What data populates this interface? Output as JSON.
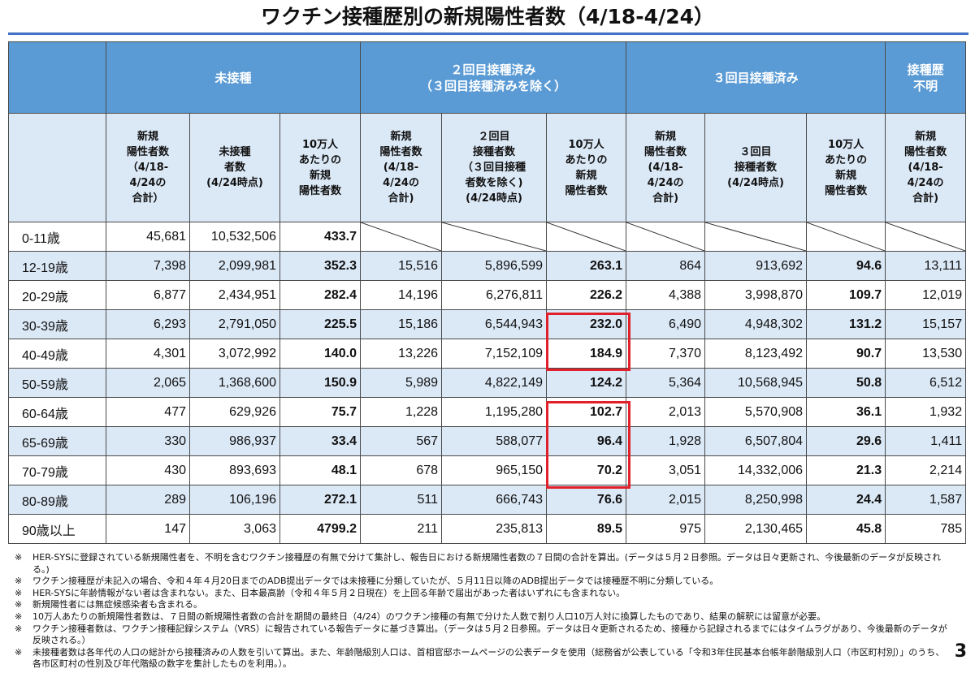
{
  "title": "ワクチン接種歴別の新規陽性者数（4/18-4/24）",
  "groups": {
    "unvaccinated": "未接種",
    "dose2": "２回目接種済み\n（３回目接種済みを除く）",
    "dose3": "３回目接種済み",
    "unknown": "接種歴\n不明"
  },
  "columns": [
    "新規\n陽性者数\n（4/18-\n4/24の\n合計）",
    "未接種\n者数\n(4/24時点)",
    "10万人\nあたりの\n新規\n陽性者数",
    "新規\n陽性者数\n(4/18-\n4/24の\n合計)",
    "２回目\n接種者数\n（３回目接種\n者数を除く)\n(4/24時点)",
    "10万人\nあたりの\n新規\n陽性者数",
    "新規\n陽性者数\n(4/18-\n4/24の\n合計)",
    "３回目\n接種者数\n(4/24時点)",
    "10万人\nあたりの\n新規\n陽性者数",
    "新規\n陽性者数\n(4/18-\n4/24の\n合計)"
  ],
  "rows": [
    {
      "age": "0-11歳",
      "v": [
        "45,681",
        "10,532,506",
        "433.7",
        "",
        "",
        "",
        "",
        "",
        "",
        ""
      ]
    },
    {
      "age": "12-19歳",
      "v": [
        "7,398",
        "2,099,981",
        "352.3",
        "15,516",
        "5,896,599",
        "263.1",
        "864",
        "913,692",
        "94.6",
        "13,111"
      ]
    },
    {
      "age": "20-29歳",
      "v": [
        "6,877",
        "2,434,951",
        "282.4",
        "14,196",
        "6,276,811",
        "226.2",
        "4,388",
        "3,998,870",
        "109.7",
        "12,019"
      ]
    },
    {
      "age": "30-39歳",
      "v": [
        "6,293",
        "2,791,050",
        "225.5",
        "15,186",
        "6,544,943",
        "232.0",
        "6,490",
        "4,948,302",
        "131.2",
        "15,157"
      ]
    },
    {
      "age": "40-49歳",
      "v": [
        "4,301",
        "3,072,992",
        "140.0",
        "13,226",
        "7,152,109",
        "184.9",
        "7,370",
        "8,123,492",
        "90.7",
        "13,530"
      ]
    },
    {
      "age": "50-59歳",
      "v": [
        "2,065",
        "1,368,600",
        "150.9",
        "5,989",
        "4,822,149",
        "124.2",
        "5,364",
        "10,568,945",
        "50.8",
        "6,512"
      ]
    },
    {
      "age": "60-64歳",
      "v": [
        "477",
        "629,926",
        "75.7",
        "1,228",
        "1,195,280",
        "102.7",
        "2,013",
        "5,570,908",
        "36.1",
        "1,932"
      ]
    },
    {
      "age": "65-69歳",
      "v": [
        "330",
        "986,937",
        "33.4",
        "567",
        "588,077",
        "96.4",
        "1,928",
        "6,507,804",
        "29.6",
        "1,411"
      ]
    },
    {
      "age": "70-79歳",
      "v": [
        "430",
        "893,693",
        "48.1",
        "678",
        "965,150",
        "70.2",
        "3,051",
        "14,332,006",
        "21.3",
        "2,214"
      ]
    },
    {
      "age": "80-89歳",
      "v": [
        "289",
        "106,196",
        "272.1",
        "511",
        "666,743",
        "76.6",
        "2,015",
        "8,250,998",
        "24.4",
        "1,587"
      ]
    },
    {
      "age": "90歳以上",
      "v": [
        "147",
        "3,063",
        "4799.2",
        "211",
        "235,813",
        "89.5",
        "975",
        "2,130,465",
        "45.8",
        "785"
      ]
    }
  ],
  "notes": [
    {
      "mark": "※",
      "text": "HER-SYSに登録されている新規陽性者を、不明を含むワクチン接種歴の有無で分けて集計し、報告日における新規陽性者数の７日間の合計を算出。(データは５月２日参照。データは日々更新され、今後最新のデータが反映される。)"
    },
    {
      "mark": "※",
      "text": "ワクチン接種歴が未記入の場合、令和４年４月20日までのADB提出データでは未接種に分類していたが、５月11日以降のADB提出データでは接種歴不明に分類している。"
    },
    {
      "mark": "※",
      "text": "HER-SYSに年齢情報がない者は含まれない。また、日本最高齢（令和４年５月２日現在）を上回る年齢で届出があった者はいずれにも含まれない。"
    },
    {
      "mark": "※",
      "text": "新規陽性者には無症候感染者も含まれる。"
    },
    {
      "mark": "※",
      "text": "10万人あたりの新規陽性者数は、７日間の新規陽性者数の合計を期間の最終日（4/24）のワクチン接種の有無で分けた人数で割り人口10万人対に換算したものであり、結果の解釈には留意が必要。"
    },
    {
      "mark": "※",
      "text": "ワクチン接種者数は、ワクチン接種記録システム（VRS）に報告されている報告データに基づき算出。（データは５月２日参照。データは日々更新されるため、接種から記録されるまでにはタイムラグがあり、今後最新のデータが反映される。）"
    },
    {
      "mark": "※",
      "text": "未接種者数は各年代の人口の総計から接種済みの人数を引いて算出。また、年齢階級別人口は、首相官邸ホームページの公表データを使用（総務省が公表している「令和3年住民基本台帳年齢階級別人口（市区町村別）」のうち、各市区町村の性別及び年代階級の数字を集計したものを利用。）。"
    }
  ],
  "page_number": "3"
}
